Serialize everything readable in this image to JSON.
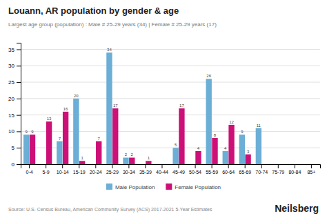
{
  "chart_data": {
    "type": "bar",
    "title": "Louann, AR population by gender & age",
    "subtitle": "Largest age group (population) : Male # 25-29 years (34) | Female # 25-29 years (17)",
    "annotations": [
      "Source: U.S. Census Bureau, American Community Survey (ACS) 2017-2021 5-Year Estimates",
      "Neilsberg"
    ],
    "categories": [
      "0-4",
      "5-9",
      "10-14",
      "15-19",
      "20-24",
      "25-29",
      "30-34",
      "35-39",
      "40-44",
      "45-49",
      "50-54",
      "55-59",
      "60-64",
      "65-69",
      "70-74",
      "75-79",
      "80-84",
      "85+"
    ],
    "series": [
      {
        "name": "Male Population",
        "color": "#6baed6",
        "values": [
          9,
          0,
          7,
          20,
          0,
          34,
          2,
          0,
          0,
          5,
          0,
          26,
          4,
          9,
          11,
          0,
          0,
          0
        ]
      },
      {
        "name": "Female Population",
        "color": "#cc1077",
        "values": [
          9,
          13,
          16,
          1,
          7,
          17,
          2,
          1,
          0,
          17,
          4,
          8,
          12,
          3,
          0,
          0,
          0,
          0
        ]
      }
    ],
    "ylim": [
      0,
      37
    ],
    "yticks": [
      0,
      5,
      10,
      15,
      20,
      25,
      30,
      35
    ],
    "grid": true,
    "legend": "bottom",
    "data_labels": true
  }
}
